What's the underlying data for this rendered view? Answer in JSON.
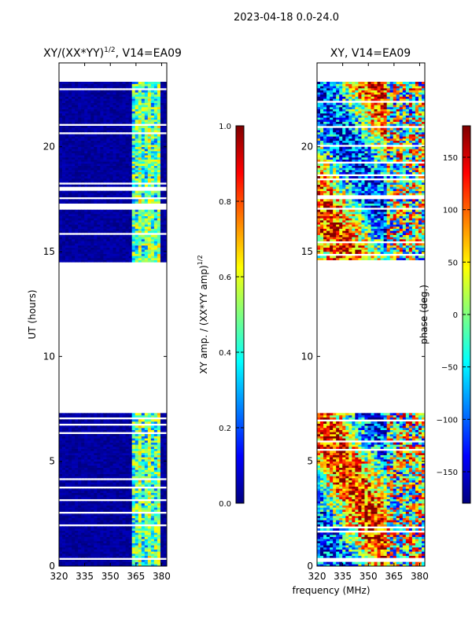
{
  "figure": {
    "suptitle": "2023-04-18 0.0-24.0",
    "xlabel": "frequency (MHz)",
    "ylabel": "UT (hours)"
  },
  "colors": {
    "jet": [
      "#00007f",
      "#0000ff",
      "#007fff",
      "#00ffff",
      "#7fff7f",
      "#ffff00",
      "#ff7f00",
      "#ff0000",
      "#7f0000"
    ]
  },
  "chart_data": [
    {
      "type": "heatmap",
      "title_main": "XY/(XX*YY)",
      "title_sup": "1/2",
      "title_rest": ", V14=EA09",
      "xlim": [
        320,
        383
      ],
      "ylim": [
        0,
        24
      ],
      "x_ticks": [
        320,
        335,
        350,
        365,
        380
      ],
      "y_ticks": [
        0,
        5,
        10,
        15,
        20
      ],
      "data_ranges_hours": [
        [
          0,
          7.3
        ],
        [
          14.5,
          23.1
        ]
      ],
      "bright_band_mhz": [
        363,
        380
      ],
      "colorbar": {
        "label_main": "XY amp. / (XX*YY amp)",
        "label_sup": "1/2",
        "range": [
          0.0,
          1.0
        ],
        "ticks": [
          "0.0",
          "0.2",
          "0.4",
          "0.6",
          "0.8",
          "1.0"
        ],
        "tick_values": [
          0.0,
          0.2,
          0.4,
          0.6,
          0.8,
          1.0
        ]
      }
    },
    {
      "type": "heatmap",
      "title": "XY, V14=EA09",
      "xlim": [
        320,
        383
      ],
      "ylim": [
        0,
        24
      ],
      "x_ticks": [
        320,
        335,
        350,
        365,
        380
      ],
      "y_ticks": [
        0,
        5,
        10,
        15,
        20
      ],
      "data_ranges_hours": [
        [
          0,
          7.3
        ],
        [
          14.5,
          23.1
        ]
      ],
      "colorbar": {
        "label": "phase (deg.)",
        "range": [
          -180,
          180
        ],
        "ticks": [
          "−150",
          "−100",
          "−50",
          "0",
          "50",
          "100",
          "150"
        ],
        "tick_values": [
          -150,
          -100,
          -50,
          0,
          50,
          100,
          150
        ]
      }
    }
  ]
}
